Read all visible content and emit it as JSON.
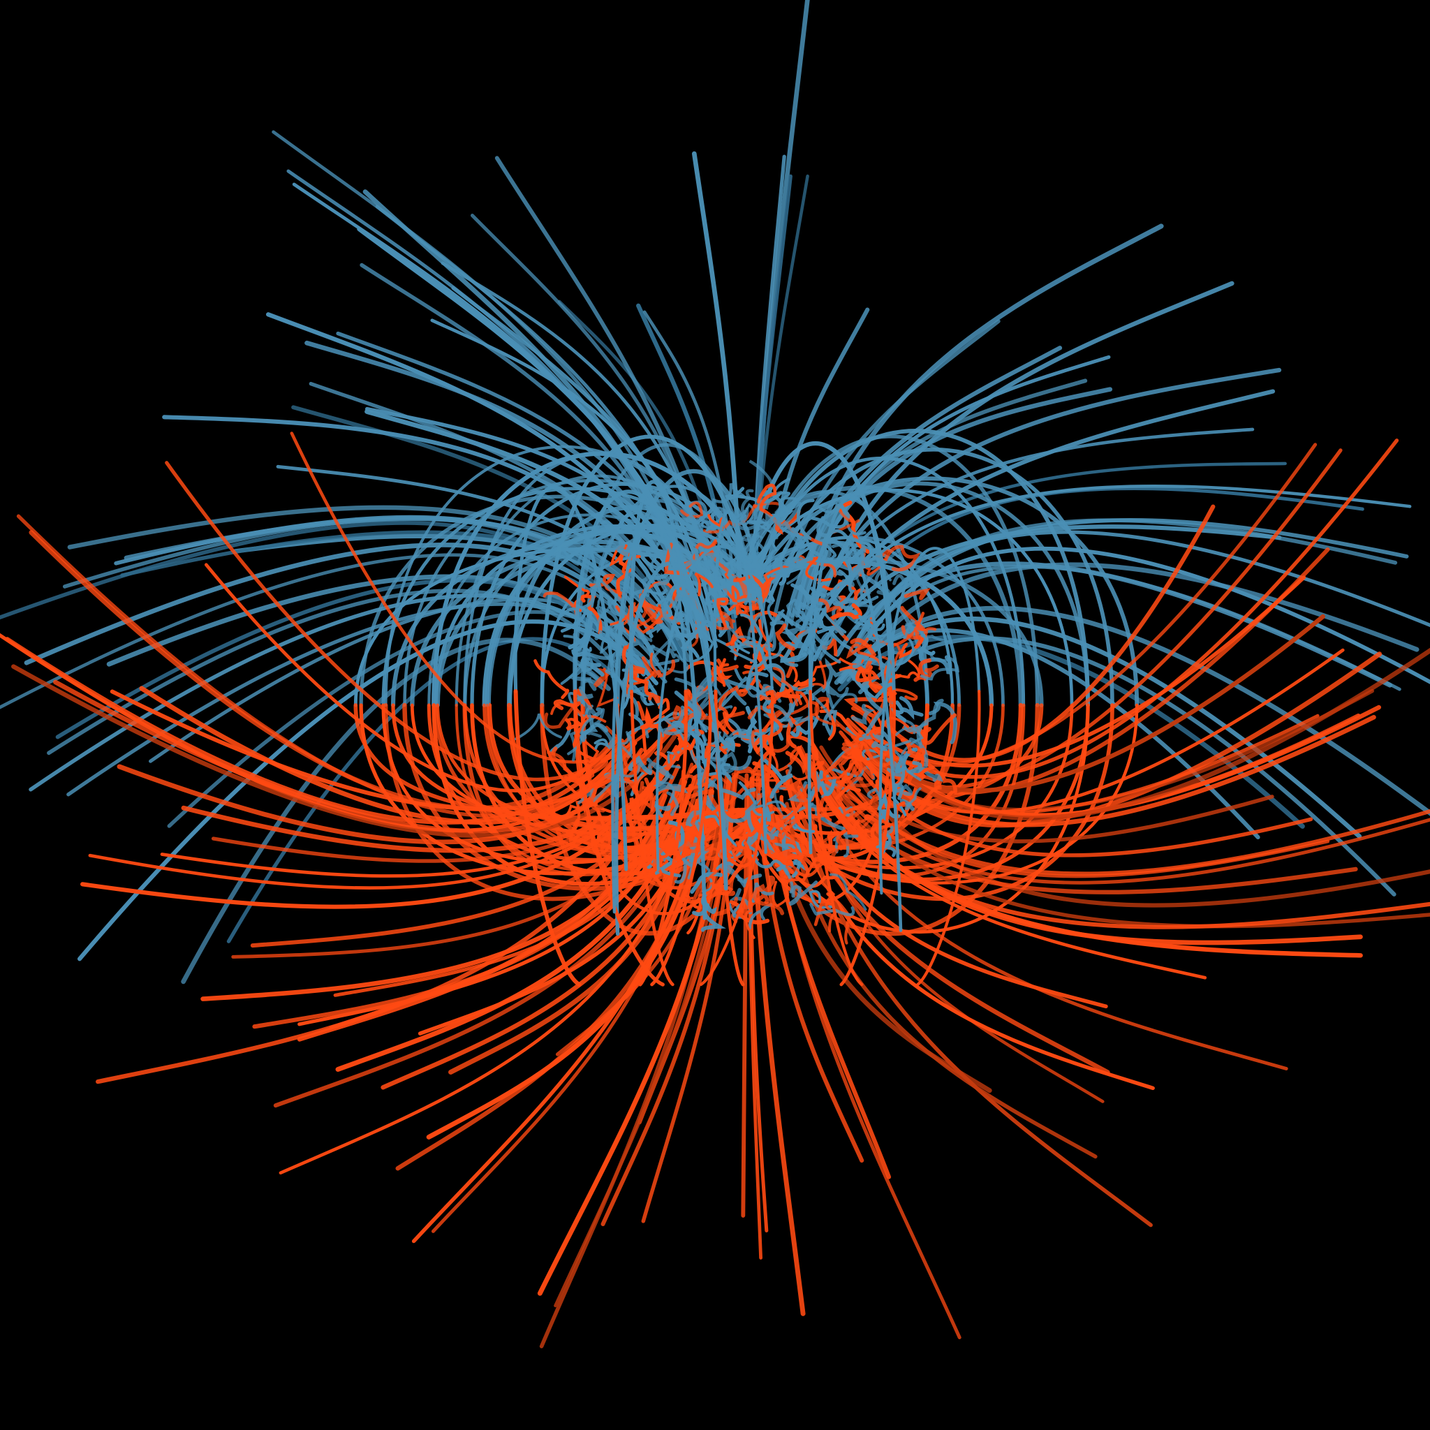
{
  "image": {
    "subject": "magnetic-field-lines",
    "background_color": "#000000",
    "colors": {
      "outward_field": "#4a8fb5",
      "outward_field_dark": "#2f6a8c",
      "inward_field": "#ff4a12",
      "inward_field_dark": "#c43a0e"
    },
    "regions": {
      "upper_hemisphere_color": "outward_field",
      "lower_hemisphere_color": "inward_field",
      "core": "tangled-field-lines"
    },
    "icons": {
      "field_lines": "magnetic-field-lines-icon"
    }
  }
}
